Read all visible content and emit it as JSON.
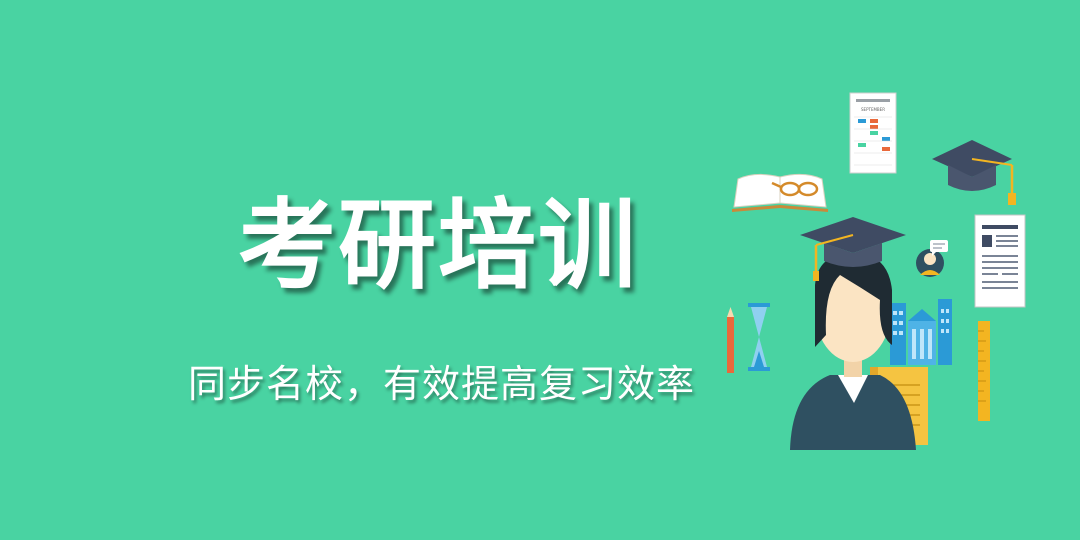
{
  "banner": {
    "title": "考研培训",
    "subtitle": "同步名校，有效提高复习效率",
    "calendar_month": "SEPTEMBER"
  },
  "colors": {
    "background": "#49d3a2",
    "text": "#ffffff",
    "cap": "#3f4b63",
    "tassel": "#f3b521",
    "suit": "#2f5061",
    "skin": "#fbe4c3",
    "building": "#2b9ad6",
    "book": "#f5c441",
    "pencil": "#e9693b"
  }
}
